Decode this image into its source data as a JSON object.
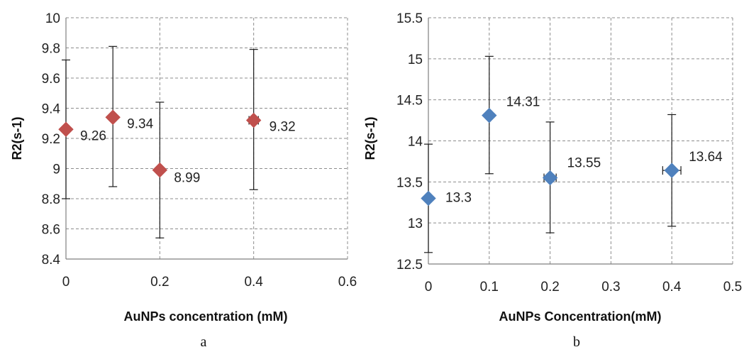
{
  "chart_data": [
    {
      "type": "scatter",
      "panel_label": "a",
      "xlabel": "AuNPs concentration (mM)",
      "ylabel": "R2(s-1)",
      "xlim": [
        0,
        0.6
      ],
      "ylim": [
        8.4,
        10
      ],
      "xticks": [
        "0",
        "0.2",
        "0.4",
        "0.6"
      ],
      "yticks": [
        "8.4",
        "8.6",
        "8.8",
        "9",
        "9.2",
        "9.4",
        "9.6",
        "9.8",
        "10"
      ],
      "grid": true,
      "marker": "diamond",
      "color": "#c0504d",
      "points": [
        {
          "x": 0,
          "y": 9.26,
          "label": "9.26",
          "yerr_low": 8.8,
          "yerr_high": 9.72,
          "xerr": 0
        },
        {
          "x": 0.1,
          "y": 9.34,
          "label": "9.34",
          "yerr_low": 8.88,
          "yerr_high": 9.81,
          "xerr": 0
        },
        {
          "x": 0.2,
          "y": 8.99,
          "label": "8.99",
          "yerr_low": 8.54,
          "yerr_high": 9.44,
          "xerr": 0.005
        },
        {
          "x": 0.4,
          "y": 9.32,
          "label": "9.32",
          "yerr_low": 8.86,
          "yerr_high": 9.79,
          "xerr": 0.01
        }
      ]
    },
    {
      "type": "scatter",
      "panel_label": "b",
      "xlabel": "AuNPs Concentration(mM)",
      "ylabel": "R2(s-1)",
      "xlim": [
        0,
        0.5
      ],
      "ylim": [
        12.5,
        15.5
      ],
      "xticks": [
        "0",
        "0.1",
        "0.2",
        "0.3",
        "0.4",
        "0.5"
      ],
      "yticks": [
        "12.5",
        "13",
        "13.5",
        "14",
        "14.5",
        "15",
        "15.5"
      ],
      "grid": true,
      "marker": "diamond",
      "color": "#4f81bd",
      "points": [
        {
          "x": 0,
          "y": 13.3,
          "label": "13.3",
          "yerr_low": 12.64,
          "yerr_high": 13.96,
          "xerr": 0
        },
        {
          "x": 0.1,
          "y": 14.31,
          "label": "14.31",
          "yerr_low": 13.6,
          "yerr_high": 15.03,
          "xerr": 0
        },
        {
          "x": 0.2,
          "y": 13.55,
          "label": "13.55",
          "yerr_low": 12.88,
          "yerr_high": 14.23,
          "xerr": 0.01
        },
        {
          "x": 0.4,
          "y": 13.64,
          "label": "13.64",
          "yerr_low": 12.96,
          "yerr_high": 14.32,
          "xerr": 0.015
        }
      ]
    }
  ]
}
